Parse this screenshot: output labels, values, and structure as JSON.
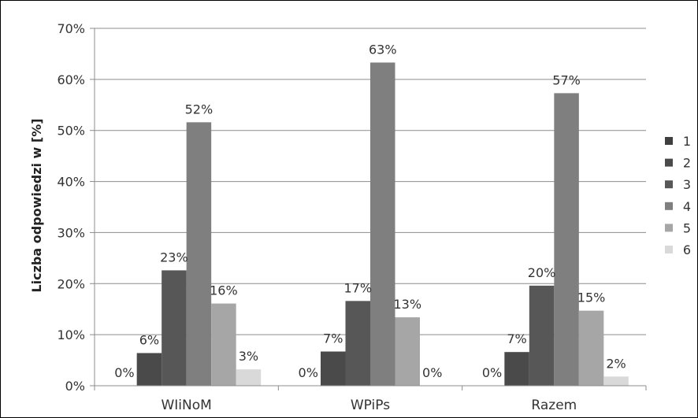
{
  "chart_data": {
    "type": "bar",
    "title": "",
    "xlabel": "",
    "ylabel": "Liczba odpowiedzi w [%]",
    "ylim": [
      0,
      70
    ],
    "yticks": [
      0,
      10,
      20,
      30,
      40,
      50,
      60,
      70
    ],
    "ytick_labels": [
      "0%",
      "10%",
      "20%",
      "30%",
      "40%",
      "50%",
      "60%",
      "70%"
    ],
    "grid": true,
    "legend_position": "right",
    "categories": [
      "WIiNoM",
      "WPiPs",
      "Razem"
    ],
    "series": [
      {
        "name": "1",
        "color": "#3f3f3f",
        "values": [
          0,
          0,
          0
        ],
        "labels": [
          "0%",
          "0%",
          "0%"
        ]
      },
      {
        "name": "2",
        "color": "#4a4a4a",
        "values": [
          6.4,
          6.7,
          6.6
        ],
        "labels": [
          "6%",
          "7%",
          "7%"
        ]
      },
      {
        "name": "3",
        "color": "#575757",
        "values": [
          22.6,
          16.6,
          19.6
        ],
        "labels": [
          "23%",
          "17%",
          "20%"
        ]
      },
      {
        "name": "4",
        "color": "#7f7f7f",
        "values": [
          51.6,
          63.3,
          57.3
        ],
        "labels": [
          "52%",
          "63%",
          "57%"
        ]
      },
      {
        "name": "5",
        "color": "#a6a6a6",
        "values": [
          16.1,
          13.4,
          14.7
        ],
        "labels": [
          "16%",
          "13%",
          "15%"
        ]
      },
      {
        "name": "6",
        "color": "#d9d9d9",
        "values": [
          3.2,
          0,
          1.8
        ],
        "labels": [
          "3%",
          "0%",
          "2%"
        ]
      }
    ]
  }
}
